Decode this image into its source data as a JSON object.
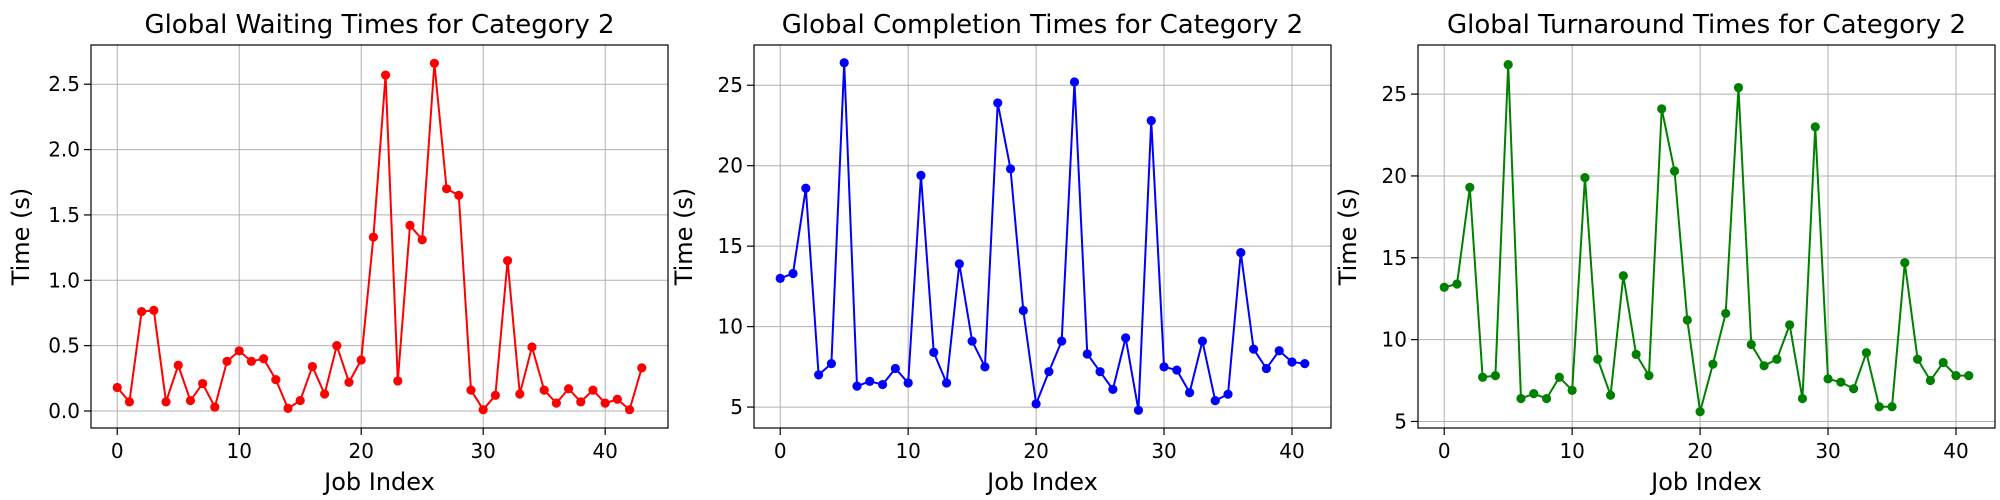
{
  "chart_data": [
    {
      "type": "line",
      "title": "Global Waiting Times for Category 2",
      "xlabel": "Job Index",
      "ylabel": "Time (s)",
      "color": "#ff0000",
      "marker": "circle",
      "grid": true,
      "xlim": [
        -2.15,
        45.15
      ],
      "ylim": [
        -0.13,
        2.8
      ],
      "xticks": [
        0,
        10,
        20,
        30,
        40
      ],
      "yticks": [
        0.0,
        0.5,
        1.0,
        1.5,
        2.0,
        2.5
      ],
      "ytick_labels": [
        "0.0",
        "0.5",
        "1.0",
        "1.5",
        "2.0",
        "2.5"
      ],
      "xtick_labels": [
        "0",
        "10",
        "20",
        "30",
        "40"
      ],
      "series": [
        {
          "x": [
            0,
            1,
            2,
            3,
            4,
            5,
            6,
            7,
            8,
            9,
            10,
            11,
            12,
            13,
            14,
            15,
            16,
            17,
            18,
            19,
            20,
            21,
            22,
            23,
            24,
            25,
            26,
            27,
            28,
            29,
            30,
            31,
            32,
            33,
            34,
            35,
            36,
            37,
            38,
            39,
            40,
            41,
            42,
            43
          ],
          "values": [
            0.18,
            0.07,
            0.76,
            0.77,
            0.07,
            0.35,
            0.08,
            0.21,
            0.03,
            0.38,
            0.46,
            0.38,
            0.4,
            0.24,
            0.02,
            0.08,
            0.34,
            0.13,
            0.5,
            0.22,
            0.39,
            1.33,
            2.57,
            0.23,
            1.42,
            1.31,
            2.66,
            1.7,
            1.65,
            0.16,
            0.01,
            0.12,
            1.15,
            0.13,
            0.49,
            0.16,
            0.06,
            0.17,
            0.07,
            0.16,
            0.06,
            0.09,
            0.01,
            0.33
          ]
        }
      ]
    },
    {
      "type": "line",
      "title": "Global Completion Times for Category 2",
      "xlabel": "Job Index",
      "ylabel": "Time (s)",
      "color": "#0000ff",
      "marker": "circle",
      "grid": true,
      "xlim": [
        -2.05,
        43.05
      ],
      "ylim": [
        3.7,
        27.5
      ],
      "xticks": [
        0,
        10,
        20,
        30,
        40
      ],
      "yticks": [
        5,
        10,
        15,
        20,
        25
      ],
      "ytick_labels": [
        "5",
        "10",
        "15",
        "20",
        "25"
      ],
      "xtick_labels": [
        "0",
        "10",
        "20",
        "30",
        "40"
      ],
      "series": [
        {
          "x": [
            0,
            1,
            2,
            3,
            4,
            5,
            6,
            7,
            8,
            9,
            10,
            11,
            12,
            13,
            14,
            15,
            16,
            17,
            18,
            19,
            20,
            21,
            22,
            23,
            24,
            25,
            26,
            27,
            28,
            29,
            30,
            31,
            32,
            33,
            34,
            35,
            36,
            37,
            38,
            39,
            40,
            41
          ],
          "values": [
            13.0,
            13.3,
            18.6,
            7.0,
            7.7,
            26.4,
            6.3,
            6.6,
            6.4,
            7.4,
            6.5,
            19.4,
            8.4,
            6.5,
            13.9,
            9.1,
            7.5,
            23.9,
            19.8,
            11.0,
            5.2,
            7.2,
            9.1,
            25.2,
            8.3,
            7.2,
            6.1,
            9.3,
            4.8,
            22.8,
            7.5,
            7.3,
            5.9,
            9.1,
            5.4,
            5.8,
            14.6,
            8.6,
            7.4,
            8.5,
            7.8,
            7.7
          ]
        }
      ]
    },
    {
      "type": "line",
      "title": "Global Turnaround Times for Category 2",
      "xlabel": "Job Index",
      "ylabel": "Time (s)",
      "color": "#008000",
      "marker": "circle",
      "grid": true,
      "xlim": [
        -2.05,
        43.05
      ],
      "ylim": [
        4.6,
        28.0
      ],
      "xticks": [
        0,
        10,
        20,
        30,
        40
      ],
      "yticks": [
        5,
        10,
        15,
        20,
        25
      ],
      "ytick_labels": [
        "5",
        "10",
        "15",
        "20",
        "25"
      ],
      "xtick_labels": [
        "0",
        "10",
        "20",
        "30",
        "40"
      ],
      "series": [
        {
          "x": [
            0,
            1,
            2,
            3,
            4,
            5,
            6,
            7,
            8,
            9,
            10,
            11,
            12,
            13,
            14,
            15,
            16,
            17,
            18,
            19,
            20,
            21,
            22,
            23,
            24,
            25,
            26,
            27,
            28,
            29,
            30,
            31,
            32,
            33,
            34,
            35,
            36,
            37,
            38,
            39,
            40,
            41
          ],
          "values": [
            13.2,
            13.4,
            19.3,
            7.7,
            7.8,
            26.8,
            6.4,
            6.7,
            6.4,
            7.7,
            6.9,
            19.9,
            8.8,
            6.6,
            13.9,
            9.1,
            7.8,
            24.1,
            20.3,
            11.2,
            5.6,
            8.5,
            11.6,
            25.4,
            9.7,
            8.4,
            8.8,
            10.9,
            6.4,
            23.0,
            7.6,
            7.4,
            7.0,
            9.2,
            5.9,
            5.9,
            14.7,
            8.8,
            7.5,
            8.6,
            7.8,
            7.8
          ]
        }
      ]
    }
  ]
}
